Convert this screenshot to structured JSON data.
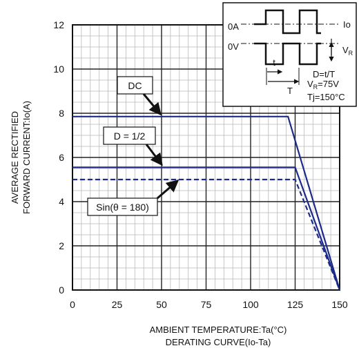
{
  "chart_data": {
    "type": "line",
    "title": "",
    "xlabel": "AMBIENT TEMPERATURE:Ta(°C)",
    "caption": "DERATING CURVE(Io-Ta)",
    "ylabel": [
      "AVERAGE RECTIFIED",
      "FORWARD CURRENT:Io(A)"
    ],
    "xlim": [
      0,
      150
    ],
    "ylim": [
      0,
      12
    ],
    "x_ticks": [
      0,
      25,
      50,
      75,
      100,
      125,
      150
    ],
    "y_ticks": [
      0,
      2,
      4,
      6,
      8,
      10,
      12
    ],
    "grid": true,
    "series": [
      {
        "name": "DC",
        "color": "#1c2a8a",
        "dash": false,
        "x": [
          0,
          121,
          150
        ],
        "y": [
          7.85,
          7.85,
          0
        ]
      },
      {
        "name": "D = 1/2",
        "color": "#1c2a8a",
        "dash": false,
        "x": [
          0,
          125,
          150
        ],
        "y": [
          5.55,
          5.55,
          0
        ]
      },
      {
        "name": "Sin(θ = 180)",
        "color": "#1c2a8a",
        "dash": true,
        "x": [
          0,
          125,
          150
        ],
        "y": [
          5.0,
          5.0,
          0
        ]
      }
    ],
    "callouts": [
      {
        "text": "DC",
        "series": 0
      },
      {
        "text": "D = 1/2",
        "series": 1
      },
      {
        "text": "Sin(θ = 180)",
        "series": 2
      }
    ],
    "inset": {
      "labels": {
        "zero_a": "0A",
        "zero_v": "0V",
        "io": "Io",
        "vr": "V",
        "vr_sub": "R",
        "t": "t",
        "T": "T",
        "duty": "D=t/T",
        "vr_value_main": "V",
        "vr_value_sub": "R",
        "vr_value_rest": "=75V",
        "tj": "Tj=150°C"
      }
    }
  }
}
